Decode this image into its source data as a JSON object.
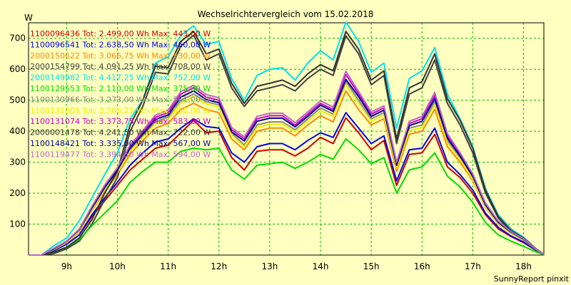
{
  "chart_data": {
    "type": "line",
    "title": "Wechselrichtervergleich vom 15.02.2018",
    "ylabel": "W",
    "footer": "SunnyReport pinxit",
    "xlim": [
      8.25,
      18.4
    ],
    "ylim": [
      0,
      750
    ],
    "grid": true,
    "legend_placement": "top-left",
    "x_ticks": [
      {
        "value": 9,
        "label": "9h"
      },
      {
        "value": 10,
        "label": "10h"
      },
      {
        "value": 11,
        "label": "11h"
      },
      {
        "value": 12,
        "label": "12h"
      },
      {
        "value": 13,
        "label": "13h"
      },
      {
        "value": 14,
        "label": "14h"
      },
      {
        "value": 15,
        "label": "15h"
      },
      {
        "value": 16,
        "label": "16h"
      },
      {
        "value": 17,
        "label": "17h"
      },
      {
        "value": 18,
        "label": "18h"
      }
    ],
    "y_ticks": [
      100,
      200,
      300,
      400,
      500,
      600,
      700
    ],
    "x": [
      8.25,
      8.5,
      8.75,
      9.0,
      9.25,
      9.5,
      9.75,
      10.0,
      10.25,
      10.5,
      10.75,
      11.0,
      11.25,
      11.5,
      11.75,
      12.0,
      12.25,
      12.5,
      12.75,
      13.0,
      13.25,
      13.5,
      13.75,
      14.0,
      14.25,
      14.5,
      14.75,
      15.0,
      15.25,
      15.5,
      15.75,
      16.0,
      16.25,
      16.5,
      16.75,
      17.0,
      17.25,
      17.5,
      17.75,
      18.0,
      18.25,
      18.4
    ],
    "series": [
      {
        "name": "1100096436 Tot: 2.499,00 Wh Max: 443,00 W",
        "color": "#cc0000",
        "values": [
          0,
          0,
          15,
          35,
          65,
          125,
          175,
          225,
          275,
          310,
          345,
          355,
          395,
          435,
          395,
          400,
          315,
          275,
          335,
          340,
          340,
          320,
          345,
          380,
          360,
          443,
          395,
          340,
          370,
          225,
          325,
          330,
          390,
          285,
          250,
          200,
          130,
          85,
          60,
          40,
          15,
          2
        ]
      },
      {
        "name": "1100096541 Tot: 2.638,50 Wh Max: 460,00 W",
        "color": "#0000ee",
        "values": [
          0,
          0,
          15,
          35,
          65,
          130,
          185,
          235,
          290,
          330,
          365,
          375,
          410,
          440,
          415,
          410,
          330,
          300,
          350,
          360,
          360,
          340,
          370,
          395,
          380,
          460,
          410,
          360,
          385,
          240,
          340,
          345,
          410,
          300,
          260,
          210,
          135,
          90,
          62,
          42,
          15,
          2
        ]
      },
      {
        "name": "2000150622 Tot: 3.066,75 Wh Max: 530,00 W",
        "color": "#ff8800",
        "values": [
          0,
          0,
          20,
          40,
          75,
          145,
          205,
          260,
          325,
          370,
          410,
          425,
          470,
          490,
          470,
          460,
          375,
          340,
          400,
          410,
          410,
          385,
          420,
          450,
          430,
          530,
          470,
          420,
          440,
          270,
          390,
          400,
          470,
          350,
          300,
          240,
          155,
          100,
          70,
          48,
          18,
          2
        ]
      },
      {
        "name": "2000154799 Tot: 4.091,25 Wh Max: 708,00 W",
        "color": "#404040",
        "values": [
          0,
          0,
          5,
          20,
          45,
          100,
          180,
          250,
          400,
          480,
          590,
          585,
          675,
          710,
          630,
          650,
          540,
          480,
          530,
          540,
          550,
          530,
          570,
          600,
          580,
          708,
          650,
          550,
          580,
          360,
          520,
          540,
          630,
          490,
          420,
          330,
          200,
          120,
          75,
          50,
          18,
          2
        ]
      },
      {
        "name": "2000149982 Tot: 4.417,25 Wh Max: 752,00 W",
        "color": "#00e0ee",
        "values": [
          0,
          0,
          30,
          55,
          110,
          185,
          260,
          330,
          440,
          500,
          620,
          640,
          710,
          740,
          680,
          690,
          570,
          500,
          580,
          600,
          605,
          565,
          620,
          660,
          630,
          752,
          690,
          590,
          620,
          410,
          570,
          595,
          670,
          520,
          440,
          350,
          215,
          130,
          85,
          58,
          20,
          2
        ]
      },
      {
        "name": "1100129553 Tot: 2.110,00 Wh Max: 375,00 W",
        "color": "#00dd00",
        "values": [
          0,
          0,
          10,
          25,
          50,
          95,
          135,
          175,
          235,
          270,
          300,
          300,
          335,
          345,
          340,
          345,
          275,
          245,
          290,
          295,
          300,
          280,
          300,
          325,
          310,
          375,
          340,
          295,
          315,
          200,
          275,
          285,
          330,
          255,
          220,
          170,
          105,
          65,
          45,
          28,
          10,
          1
        ]
      },
      {
        "name": "1100130966 Tot: 3.273,00 Wh Max: 561,00 W",
        "color": "#888888",
        "values": [
          0,
          0,
          20,
          42,
          80,
          150,
          215,
          270,
          340,
          385,
          430,
          445,
          500,
          520,
          495,
          485,
          395,
          355,
          420,
          430,
          430,
          405,
          440,
          475,
          455,
          561,
          500,
          440,
          460,
          285,
          410,
          420,
          495,
          370,
          315,
          250,
          160,
          105,
          72,
          50,
          18,
          2
        ]
      },
      {
        "name": "1100131005 Tot: 3.206,25 Wh Max: 550,00 W",
        "color": "#eeee00",
        "values": [
          0,
          0,
          18,
          40,
          78,
          148,
          212,
          265,
          335,
          380,
          425,
          438,
          490,
          512,
          488,
          478,
          388,
          350,
          412,
          422,
          422,
          398,
          432,
          466,
          448,
          550,
          490,
          432,
          452,
          280,
          402,
          412,
          485,
          362,
          308,
          245,
          158,
          102,
          70,
          49,
          17,
          2
        ]
      },
      {
        "name": "1100131074 Tot: 3.373,75 Wh Max: 583,00 W",
        "color": "#cc00cc",
        "values": [
          0,
          0,
          22,
          44,
          82,
          155,
          222,
          278,
          350,
          395,
          445,
          460,
          520,
          540,
          510,
          500,
          405,
          375,
          440,
          450,
          450,
          420,
          455,
          490,
          470,
          583,
          520,
          455,
          475,
          295,
          425,
          440,
          515,
          385,
          325,
          258,
          165,
          108,
          75,
          52,
          19,
          2
        ]
      },
      {
        "name": "2000001478 Tot: 4.241,50 Wh Max: 722,00 W",
        "color": "#333333",
        "values": [
          0,
          0,
          10,
          25,
          55,
          115,
          200,
          270,
          420,
          500,
          610,
          605,
          690,
          722,
          650,
          665,
          555,
          490,
          545,
          555,
          565,
          545,
          585,
          615,
          595,
          722,
          665,
          565,
          595,
          375,
          540,
          560,
          650,
          505,
          435,
          345,
          210,
          125,
          80,
          55,
          20,
          2
        ]
      },
      {
        "name": "1100148421 Tot: 3.335,00 Wh Max: 567,00 W",
        "color": "#000099",
        "values": [
          0,
          0,
          20,
          44,
          82,
          152,
          218,
          274,
          345,
          390,
          438,
          452,
          510,
          530,
          502,
          492,
          398,
          368,
          432,
          442,
          442,
          414,
          448,
          484,
          464,
          567,
          512,
          448,
          468,
          290,
          418,
          432,
          505,
          378,
          320,
          254,
          162,
          106,
          74,
          51,
          18,
          2
        ]
      },
      {
        "name": "1100119477 Tot: 3.394,50 Wh Max: 594,00 W",
        "color": "#bb66cc",
        "values": [
          0,
          0,
          22,
          45,
          84,
          158,
          226,
          282,
          356,
          402,
          452,
          468,
          528,
          548,
          518,
          508,
          412,
          382,
          448,
          458,
          458,
          428,
          462,
          498,
          478,
          594,
          528,
          462,
          482,
          300,
          432,
          448,
          525,
          392,
          330,
          262,
          168,
          110,
          76,
          53,
          19,
          2
        ]
      }
    ]
  }
}
